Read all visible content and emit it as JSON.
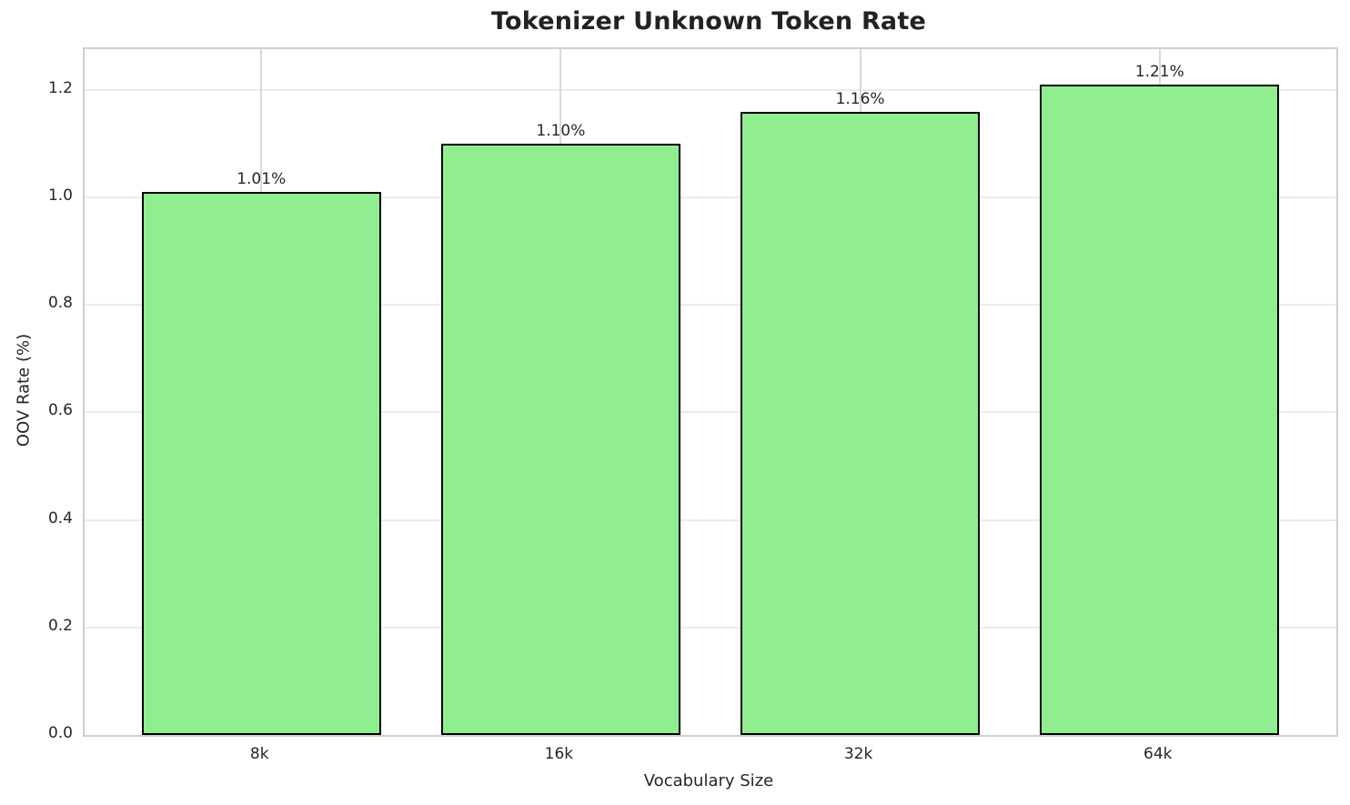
{
  "chart_data": {
    "type": "bar",
    "title": "Tokenizer Unknown Token Rate",
    "xlabel": "Vocabulary Size",
    "ylabel": "OOV Rate (%)",
    "categories": [
      "8k",
      "16k",
      "32k",
      "64k"
    ],
    "values": [
      1.01,
      1.1,
      1.16,
      1.21
    ],
    "bar_labels": [
      "1.01%",
      "1.10%",
      "1.16%",
      "1.21%"
    ],
    "ylim": [
      0,
      1.276
    ],
    "yticks": [
      0.0,
      0.2,
      0.4,
      0.6,
      0.8,
      1.0,
      1.2
    ],
    "ytick_labels": [
      "0.0",
      "0.2",
      "0.4",
      "0.6",
      "0.8",
      "1.0",
      "1.2"
    ],
    "grid": true,
    "legend": "none",
    "colors": {
      "bar_fill": "#90EE90",
      "bar_edge": "#000000",
      "grid_horizontal": "#ebebeb",
      "grid_vertical": "#d9d9d9",
      "spine": "#d0d0d0",
      "text": "#262626"
    }
  }
}
